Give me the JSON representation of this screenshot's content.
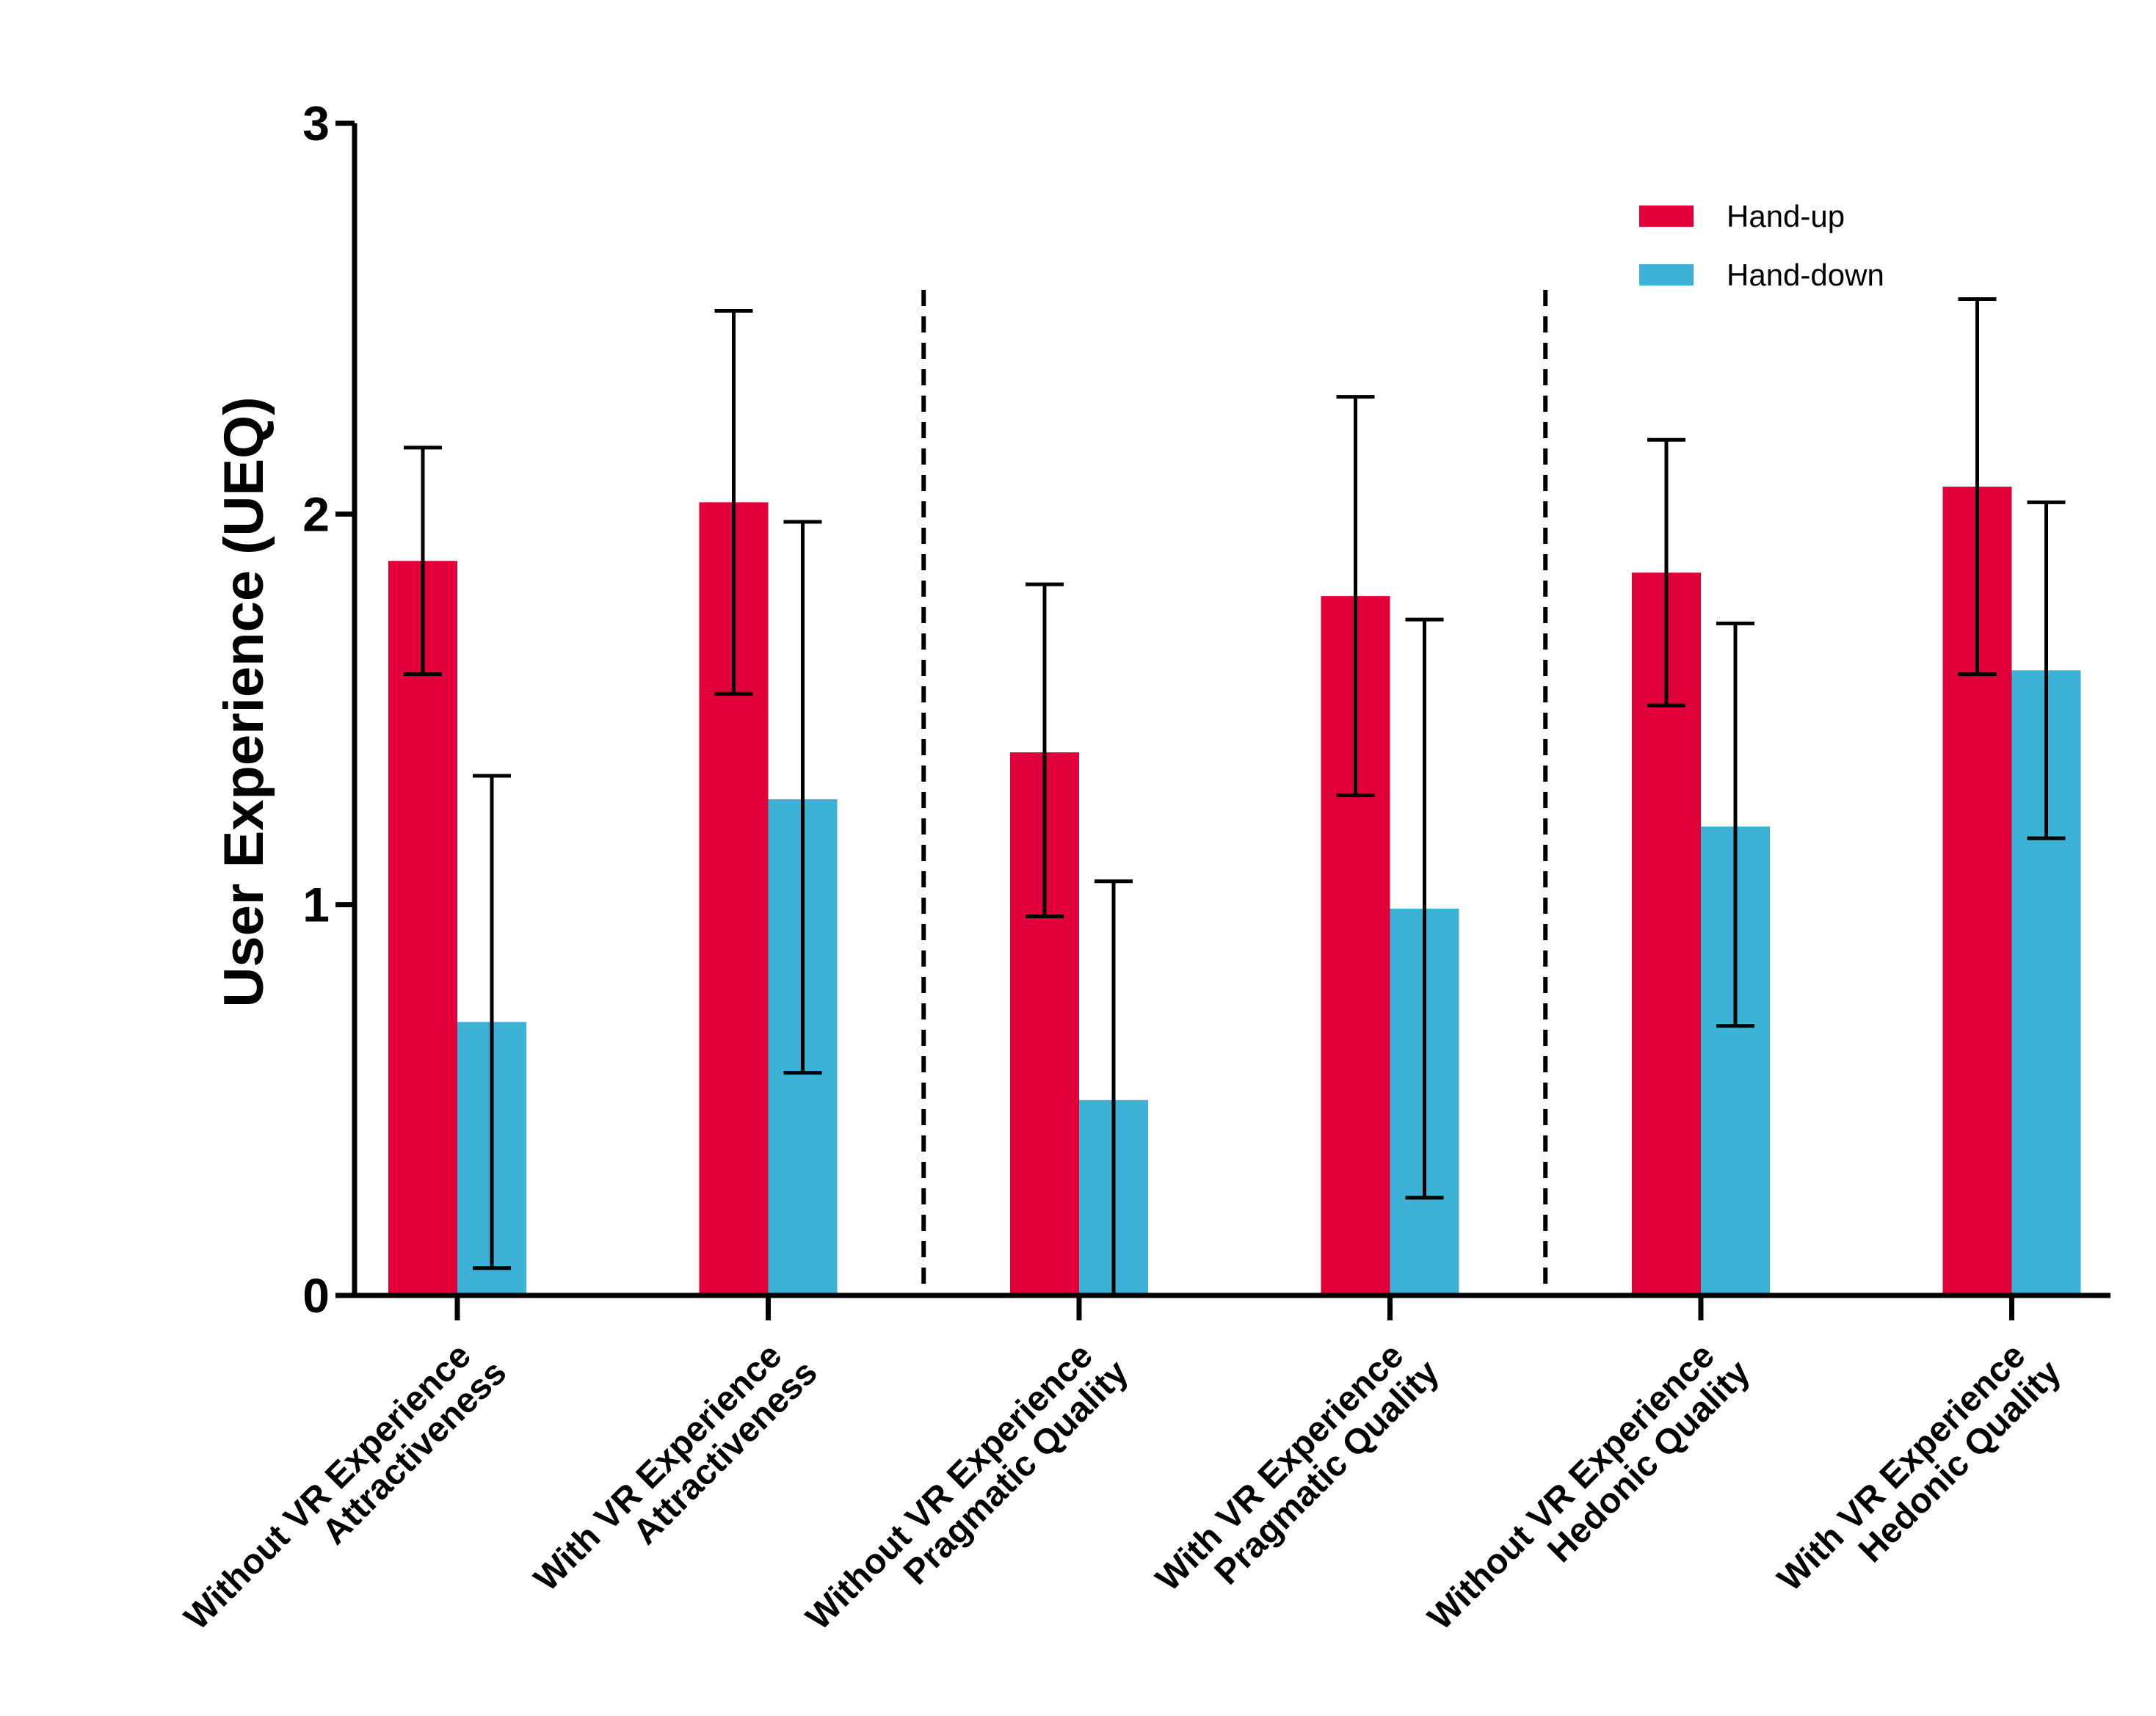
{
  "chart_data": {
    "type": "bar",
    "title": "",
    "xlabel": "",
    "ylabel": "User Experience (UEQ)",
    "ylim": [
      0,
      3
    ],
    "yticks": [
      "0",
      "1",
      "2",
      "3"
    ],
    "categories": [
      [
        "Without VR Experience",
        "Attractiveness"
      ],
      [
        "With VR Experience",
        "Attractiveness"
      ],
      [
        "Without VR Experience",
        "Pragmatic Quality"
      ],
      [
        "With VR Experience",
        "Pragmatic Quality"
      ],
      [
        "Without VR Experience",
        "Hedonic Quality"
      ],
      [
        "With VR Experience",
        "Hedonic Quality"
      ]
    ],
    "series": [
      {
        "name": "Hand-up",
        "color": "#E2003A",
        "values": [
          1.88,
          2.03,
          1.39,
          1.79,
          1.85,
          2.07
        ],
        "err_low": [
          1.59,
          1.54,
          0.97,
          1.28,
          1.51,
          1.59
        ],
        "err_high": [
          2.17,
          2.52,
          1.82,
          2.3,
          2.19,
          2.55
        ]
      },
      {
        "name": "Hand-down",
        "color": "#3CB2D6",
        "values": [
          0.7,
          1.27,
          0.5,
          0.99,
          1.2,
          1.6
        ],
        "err_low": [
          0.07,
          0.57,
          0.0,
          0.25,
          0.69,
          1.17
        ],
        "err_high": [
          1.33,
          1.98,
          1.06,
          1.73,
          1.72,
          2.03
        ]
      }
    ],
    "separators_after_category": [
      1,
      3
    ],
    "legend_position": "top-right",
    "grid": false
  }
}
